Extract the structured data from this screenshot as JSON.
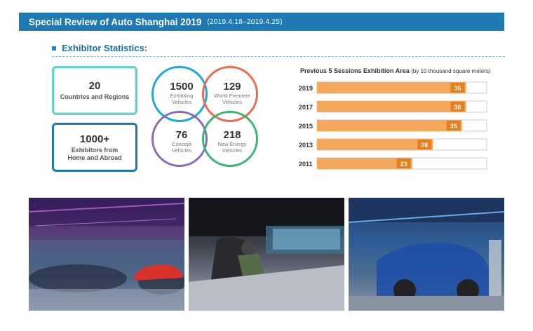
{
  "header": {
    "title": "Special Review of Auto Shanghai 2019",
    "dates": "(2019.4.18–2019.4.25)"
  },
  "section": {
    "title": "Exhibitor Statistics:"
  },
  "stats": [
    {
      "number": "20",
      "label": "Countries and Regions"
    },
    {
      "number": "1000+",
      "label_line1": "Exhibitors from",
      "label_line2": "Home and Abroad"
    }
  ],
  "circles": [
    {
      "number": "1500",
      "line1": "Exhibiting",
      "line2": "Vehicles",
      "color": "#1fa7d8"
    },
    {
      "number": "129",
      "line1": "World Premiere",
      "line2": "Vehicles",
      "color": "#ee6c4d"
    },
    {
      "number": "76",
      "line1": "Concept",
      "line2": "Vehicles",
      "color": "#8b6bb5"
    },
    {
      "number": "218",
      "line1": "New Energy",
      "line2": "Vehicles",
      "color": "#3bb577"
    }
  ],
  "chart_data": {
    "type": "bar",
    "orientation": "horizontal",
    "title": "Previous 5 Sessions Exhibition Area",
    "subtitle": "(by 10 thousand square meters)",
    "categories": [
      "2019",
      "2017",
      "2015",
      "2013",
      "2011"
    ],
    "values": [
      36,
      36,
      35,
      28,
      23
    ],
    "xlim": [
      0,
      41
    ],
    "bar_color": "#f4a85c",
    "label_color": "#e77f1e"
  },
  "photos": [
    {
      "name": "exhibition-hall-photo"
    },
    {
      "name": "driving-simulator-photo"
    },
    {
      "name": "car-display-photo"
    }
  ]
}
